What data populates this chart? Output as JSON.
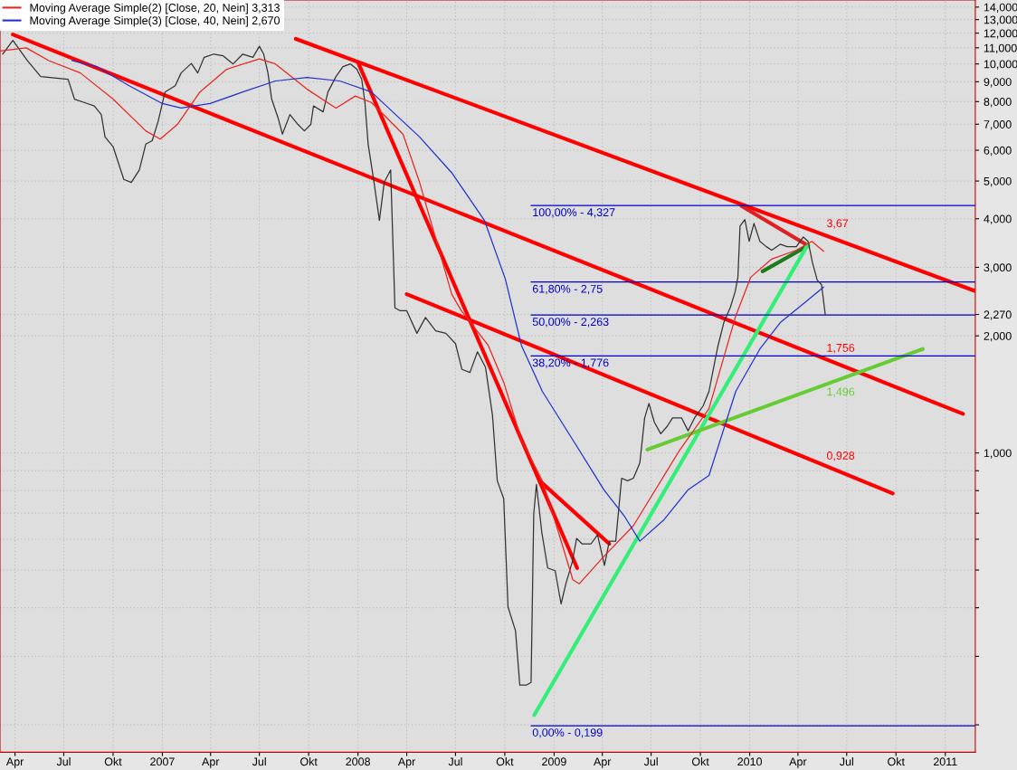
{
  "chart_data": {
    "type": "line",
    "log": true,
    "grid": true,
    "legend": "top left",
    "xlim": [
      "2006-03-04",
      "2011-02-26"
    ],
    "xticks": [
      {
        "value": "2006-04-01",
        "label": "Apr"
      },
      {
        "value": "2006-07-01",
        "label": "Jul"
      },
      {
        "value": "2006-10-01",
        "label": "Okt"
      },
      {
        "value": "2007-01-01",
        "label": "2007"
      },
      {
        "value": "2007-04-01",
        "label": "Apr"
      },
      {
        "value": "2007-07-01",
        "label": "Jul"
      },
      {
        "value": "2007-10-01",
        "label": "Okt"
      },
      {
        "value": "2008-01-01",
        "label": "2008"
      },
      {
        "value": "2008-04-01",
        "label": "Apr"
      },
      {
        "value": "2008-07-01",
        "label": "Jul"
      },
      {
        "value": "2008-10-01",
        "label": "Okt"
      },
      {
        "value": "2009-01-01",
        "label": "2009"
      },
      {
        "value": "2009-04-01",
        "label": "Apr"
      },
      {
        "value": "2009-07-01",
        "label": "Jul"
      },
      {
        "value": "2009-10-01",
        "label": "Okt"
      },
      {
        "value": "2010-01-01",
        "label": "2010"
      },
      {
        "value": "2010-04-01",
        "label": "Apr"
      },
      {
        "value": "2010-07-01",
        "label": "Jul"
      },
      {
        "value": "2010-10-01",
        "label": "Okt"
      },
      {
        "value": "2011-01-01",
        "label": "2011"
      }
    ],
    "ylim": [
      0.17,
      14.6
    ],
    "yticks": [
      {
        "value": 0.2,
        "label": null
      },
      {
        "value": 0.3,
        "label": null
      },
      {
        "value": 0.4,
        "label": null
      },
      {
        "value": 0.5,
        "label": null
      },
      {
        "value": 0.6,
        "label": null
      },
      {
        "value": 0.7,
        "label": null
      },
      {
        "value": 0.8,
        "label": null
      },
      {
        "value": 0.9,
        "label": null
      },
      {
        "value": 1,
        "label": "1,000"
      },
      {
        "value": 2,
        "label": "2,000"
      },
      {
        "value": 2.27,
        "label": "2,270"
      },
      {
        "value": 3,
        "label": "3,000"
      },
      {
        "value": 4,
        "label": "4,000"
      },
      {
        "value": 5,
        "label": "5,000"
      },
      {
        "value": 6,
        "label": "6,000"
      },
      {
        "value": 7,
        "label": "7,000"
      },
      {
        "value": 8,
        "label": "8,000"
      },
      {
        "value": 9,
        "label": "9,000"
      },
      {
        "value": 10,
        "label": "10,000"
      },
      {
        "value": 11,
        "label": "11,000"
      },
      {
        "value": 12,
        "label": "12,000"
      },
      {
        "value": 13,
        "label": "13,000"
      },
      {
        "value": 14,
        "label": "14,000"
      }
    ],
    "series": [
      {
        "color": "#333333",
        "x": [
          "2006-03-09",
          "2006-03-28",
          "2006-04-24",
          "2006-05-19",
          "2006-07-09",
          "2006-07-21",
          "2006-08-08",
          "2006-08-27",
          "2006-09-09",
          "2006-09-16",
          "2006-10-01",
          "2006-10-21",
          "2006-11-04",
          "2006-11-19",
          "2006-12-01",
          "2006-12-13",
          "2006-12-24",
          "2007-01-06",
          "2007-01-25",
          "2007-02-05",
          "2007-02-24",
          "2007-03-08",
          "2007-03-20",
          "2007-04-07",
          "2007-04-24",
          "2007-05-13",
          "2007-05-31",
          "2007-06-19",
          "2007-07-01",
          "2007-07-09",
          "2007-07-17",
          "2007-07-24",
          "2007-08-05",
          "2007-08-13",
          "2007-08-27",
          "2007-09-11",
          "2007-09-23",
          "2007-10-05",
          "2007-10-10",
          "2007-10-28",
          "2007-11-06",
          "2007-11-21",
          "2007-12-04",
          "2007-12-18",
          "2007-12-30",
          "2008-01-08",
          "2008-01-14",
          "2008-01-20",
          "2008-01-31",
          "2008-02-10",
          "2008-02-19",
          "2008-03-02",
          "2008-03-10",
          "2008-03-20",
          "2008-04-01",
          "2008-04-20",
          "2008-05-06",
          "2008-05-25",
          "2008-06-13",
          "2008-07-01",
          "2008-07-13",
          "2008-07-28",
          "2008-08-11",
          "2008-08-26",
          "2008-09-08",
          "2008-09-17",
          "2008-09-29",
          "2008-10-07",
          "2008-10-21",
          "2008-10-29",
          "2008-11-10",
          "2008-11-19",
          "2008-11-24",
          "2008-11-29",
          "2008-12-09",
          "2008-12-20",
          "2009-01-03",
          "2009-01-14",
          "2009-01-23",
          "2009-02-04",
          "2009-02-12",
          "2009-02-22",
          "2009-03-11",
          "2009-03-23",
          "2009-04-05",
          "2009-04-14",
          "2009-04-26",
          "2009-05-07",
          "2009-05-18",
          "2009-05-29",
          "2009-06-10",
          "2009-06-19",
          "2009-06-27",
          "2009-07-07",
          "2009-07-19",
          "2009-07-31",
          "2009-08-10",
          "2009-08-27",
          "2009-09-08",
          "2009-09-20",
          "2009-10-06",
          "2009-10-17",
          "2009-10-28",
          "2009-11-03",
          "2009-11-14",
          "2009-11-26",
          "2009-12-05",
          "2009-12-10",
          "2009-12-14",
          "2009-12-23",
          "2009-12-31",
          "2010-01-09",
          "2010-01-20",
          "2010-02-01",
          "2010-02-11",
          "2010-02-27",
          "2010-03-12",
          "2010-03-29",
          "2010-04-11",
          "2010-04-20",
          "2010-04-28",
          "2010-05-07",
          "2010-05-15",
          "2010-05-22"
        ],
        "values": [
          10.6,
          11.5,
          10.2,
          9.28,
          9.13,
          8.12,
          7.96,
          7.8,
          7.41,
          6.49,
          6.13,
          5.05,
          4.96,
          5.34,
          6.22,
          6.35,
          7.11,
          8.47,
          8.79,
          9.48,
          10.03,
          9.48,
          10.4,
          10.6,
          10.5,
          10.0,
          10.6,
          10.4,
          11.1,
          10.6,
          9.48,
          8.12,
          7.26,
          6.6,
          7.41,
          6.99,
          6.73,
          6.99,
          7.8,
          7.53,
          8.47,
          9.28,
          9.84,
          10.0,
          9.69,
          9.13,
          7.96,
          6.22,
          4.96,
          3.96,
          4.96,
          5.34,
          2.36,
          2.32,
          2.32,
          2.03,
          2.23,
          2.06,
          2.03,
          1.91,
          1.64,
          1.61,
          1.82,
          1.66,
          1.25,
          0.848,
          0.762,
          0.402,
          0.349,
          0.253,
          0.253,
          0.257,
          0.696,
          0.83,
          0.626,
          0.506,
          0.498,
          0.409,
          0.461,
          0.525,
          0.603,
          0.584,
          0.584,
          0.616,
          0.514,
          0.593,
          0.593,
          0.861,
          0.848,
          0.861,
          0.943,
          1.23,
          1.34,
          1.2,
          1.12,
          1.17,
          1.23,
          1.23,
          1.14,
          1.23,
          1.32,
          1.44,
          1.72,
          1.89,
          2.17,
          2.37,
          2.6,
          2.83,
          3.83,
          3.98,
          3.5,
          3.89,
          3.5,
          3.39,
          3.32,
          3.44,
          3.39,
          3.39,
          3.59,
          3.5,
          3.09,
          2.78,
          2.71,
          2.27
        ]
      },
      {
        "name": "Moving Average Simple(2) [Close, 20, Nein] 3,313",
        "color": "#e8261f",
        "x": [
          "2006-03-04",
          "2006-04-22",
          "2006-06-03",
          "2006-08-01",
          "2006-10-01",
          "2006-12-01",
          "2006-12-28",
          "2007-01-29",
          "2007-03-12",
          "2007-05-01",
          "2007-07-01",
          "2007-07-31",
          "2007-09-28",
          "2007-11-21",
          "2007-12-27",
          "2008-01-26",
          "2008-03-25",
          "2008-04-25",
          "2008-06-24",
          "2008-07-11",
          "2008-08-31",
          "2008-09-29",
          "2008-11-01",
          "2008-12-10",
          "2009-01-09",
          "2009-02-05",
          "2009-02-17",
          "2009-04-04",
          "2009-05-29",
          "2009-08-22",
          "2009-10-17",
          "2009-12-06",
          "2010-01-03",
          "2010-02-11",
          "2010-03-29",
          "2010-04-27",
          "2010-05-19"
        ],
        "values": [
          10.8,
          11.0,
          10.2,
          9.48,
          8.12,
          6.73,
          6.41,
          6.99,
          8.47,
          9.69,
          10.3,
          10.0,
          8.61,
          7.7,
          8.27,
          7.96,
          6.6,
          4.96,
          2.56,
          2.33,
          1.89,
          1.52,
          1.08,
          0.848,
          0.626,
          0.472,
          0.461,
          0.542,
          0.65,
          1.01,
          1.3,
          2.25,
          2.83,
          3.15,
          3.32,
          3.5,
          3.3
        ]
      },
      {
        "name": "Moving Average Simple(3) [Close, 40, Nein] 2,670",
        "color": "#2233cc",
        "x": [
          "2006-07-16",
          "2006-09-01",
          "2006-10-31",
          "2007-01-01",
          "2007-02-05",
          "2007-03-31",
          "2007-05-31",
          "2007-07-31",
          "2007-09-28",
          "2007-11-28",
          "2008-01-26",
          "2008-04-25",
          "2008-06-24",
          "2008-08-24",
          "2008-10-02",
          "2008-11-01",
          "2008-12-10",
          "2009-02-05",
          "2009-04-04",
          "2009-05-13",
          "2009-06-10",
          "2009-07-24",
          "2009-09-08",
          "2009-10-17",
          "2009-12-06",
          "2010-01-20",
          "2010-02-28",
          "2010-04-10",
          "2010-05-19"
        ],
        "values": [
          10.2,
          9.84,
          8.79,
          7.91,
          7.7,
          7.91,
          8.47,
          9.04,
          9.23,
          9.04,
          8.47,
          6.49,
          5.25,
          3.96,
          2.8,
          1.89,
          1.44,
          1.08,
          0.804,
          0.685,
          0.593,
          0.671,
          0.804,
          0.875,
          1.44,
          1.85,
          2.17,
          2.41,
          2.67
        ]
      },
      {
        "color": "#ff0000",
        "x": [
          "2006-03-28",
          "2011-02-03"
        ],
        "values": [
          11.9,
          1.26
        ]
      },
      {
        "color": "#ff0000",
        "x": [
          "2007-09-07",
          "2011-02-25"
        ],
        "values": [
          11.6,
          2.61
        ]
      },
      {
        "color": "#ff0000",
        "x": [
          "2008-04-01",
          "2010-09-25"
        ],
        "values": [
          2.56,
          0.787
        ]
      },
      {
        "color": "#ff0000",
        "x": [
          "2008-01-01",
          "2009-02-13"
        ],
        "values": [
          10.1,
          0.506
        ]
      },
      {
        "color": "#ff0000",
        "x": [
          "2008-12-05",
          "2009-04-14"
        ],
        "values": [
          0.848,
          0.584
        ]
      },
      {
        "color": "#e02020",
        "x": [
          "2009-12-17",
          "2010-04-20"
        ],
        "values": [
          4.31,
          3.41
        ]
      },
      {
        "color": "#1f7a1f",
        "x": [
          "2010-01-25",
          "2010-04-20"
        ],
        "values": [
          2.93,
          3.41
        ]
      },
      {
        "color": "#33ee77",
        "x": [
          "2008-11-25",
          "2010-04-20"
        ],
        "values": [
          0.212,
          3.44
        ]
      },
      {
        "color": "#66cc33",
        "x": [
          "2009-06-24",
          "2010-11-20"
        ],
        "values": [
          1.02,
          1.85
        ]
      },
      {
        "color": "#0000cc",
        "x": [
          "2008-11-19",
          "2011-02-26"
        ],
        "values": [
          4.327,
          4.327
        ]
      },
      {
        "color": "#0000cc",
        "x": [
          "2008-11-19",
          "2011-02-26"
        ],
        "values": [
          2.75,
          2.75
        ]
      },
      {
        "color": "#0000cc",
        "x": [
          "2008-11-19",
          "2011-02-26"
        ],
        "values": [
          2.263,
          2.263
        ]
      },
      {
        "color": "#0000cc",
        "x": [
          "2008-11-19",
          "2011-02-26"
        ],
        "values": [
          1.776,
          1.776
        ]
      },
      {
        "color": "#0000cc",
        "x": [
          "2008-11-19",
          "2011-02-26"
        ],
        "values": [
          0.199,
          0.199
        ]
      }
    ],
    "annotations": [
      {
        "text": "100,00% - 4,327",
        "x": "2008-11-19",
        "y": 4.327
      },
      {
        "text": "61,80% - 2,75",
        "x": "2008-11-19",
        "y": 2.75
      },
      {
        "text": "50,00% - 2,263",
        "x": "2008-11-19",
        "y": 2.263
      },
      {
        "text": "38,20% - 1,776",
        "x": "2008-11-19",
        "y": 1.776
      },
      {
        "text": "0,00% - 0,199",
        "x": "2008-11-19",
        "y": 0.199
      },
      {
        "text": "3,67",
        "x": "2010-05-22",
        "y": 3.67
      },
      {
        "text": "1,756",
        "x": "2010-05-22",
        "y": 1.756
      },
      {
        "text": "1,496",
        "x": "2010-05-22",
        "y": 1.496
      },
      {
        "text": "0,928",
        "x": "2010-05-22",
        "y": 0.928
      }
    ]
  }
}
